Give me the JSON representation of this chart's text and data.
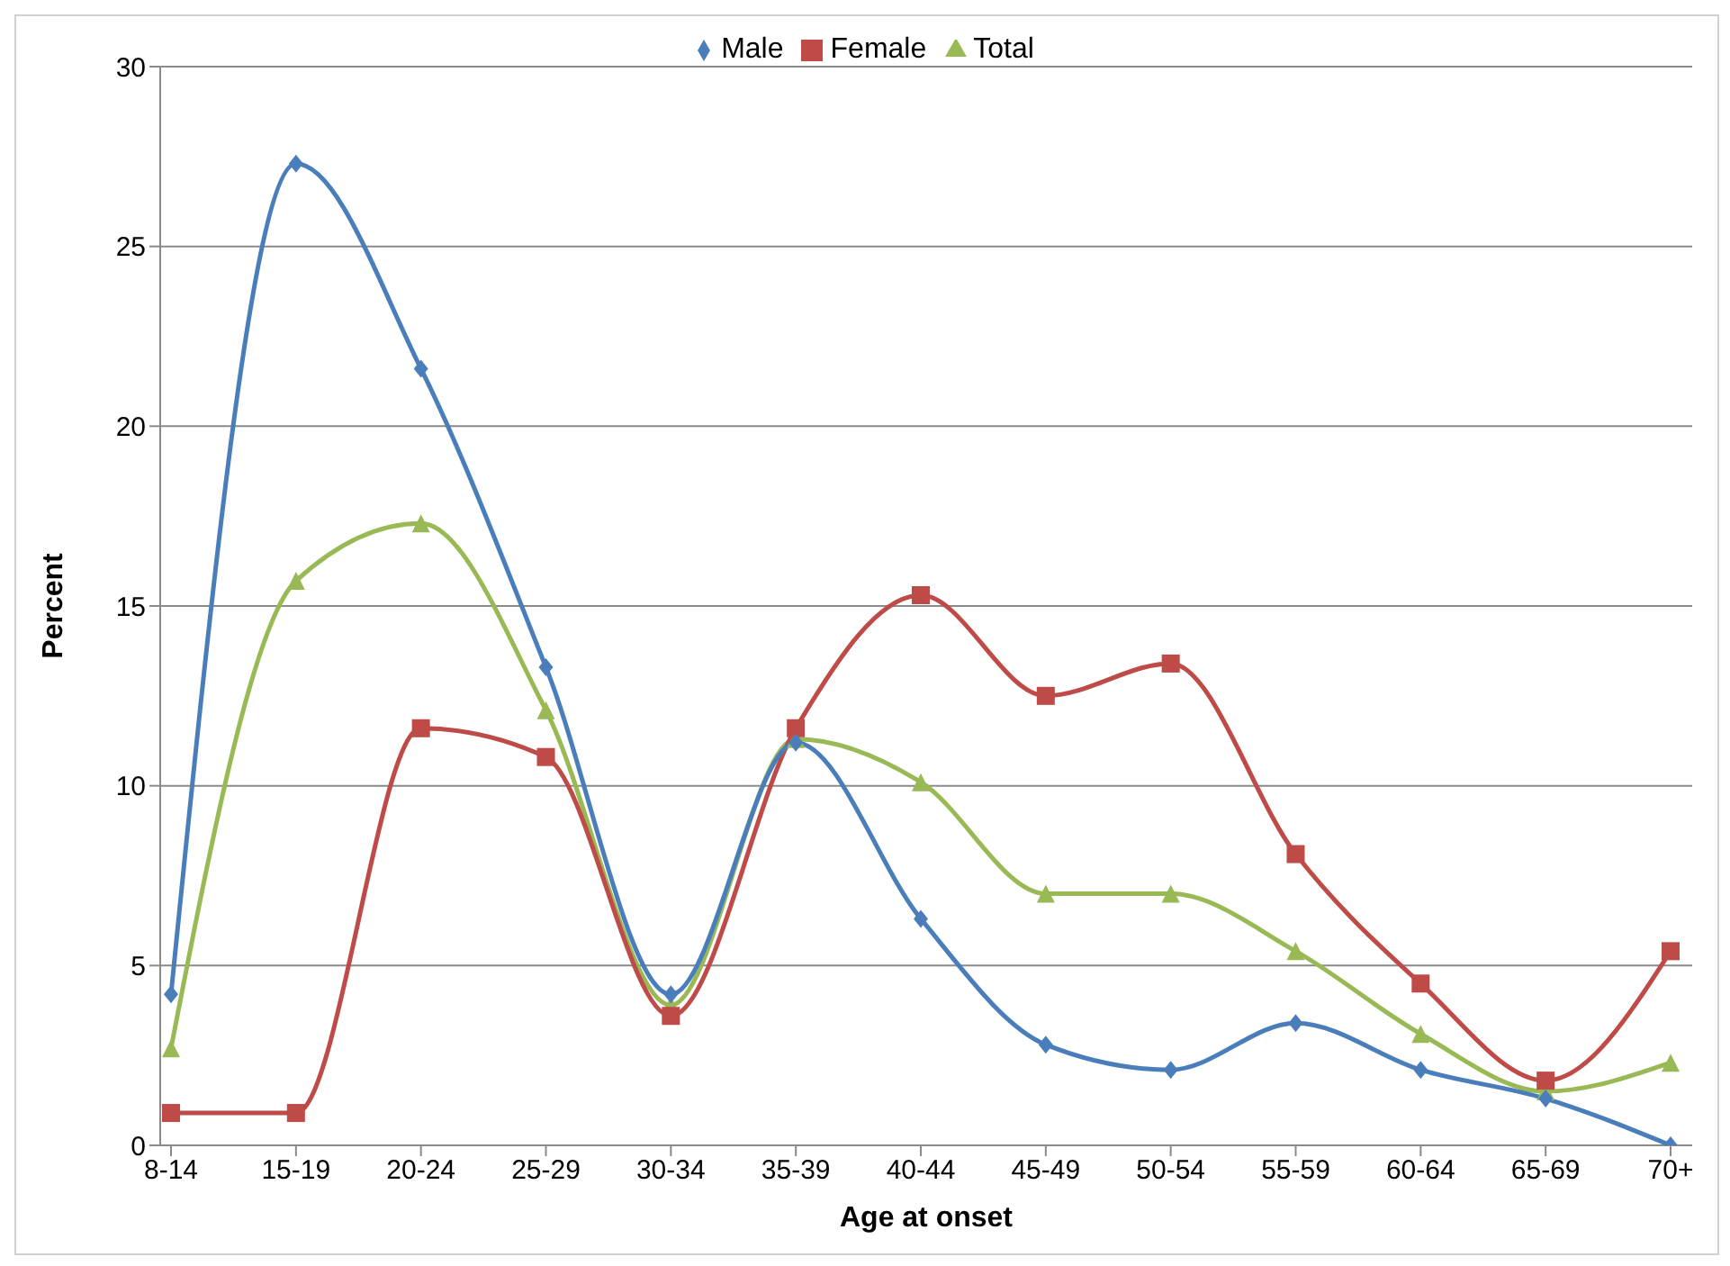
{
  "chart_data": {
    "type": "line",
    "xlabel": "Age at onset",
    "ylabel": "Percent",
    "categories": [
      "8-14",
      "15-19",
      "20-24",
      "25-29",
      "30-34",
      "35-39",
      "40-44",
      "45-49",
      "50-54",
      "55-59",
      "60-64",
      "65-69",
      "70+"
    ],
    "series": [
      {
        "name": "Male",
        "color": "#4a7ebb",
        "marker": "diamond",
        "values": [
          4.2,
          27.3,
          21.6,
          13.3,
          4.2,
          11.2,
          6.3,
          2.8,
          2.1,
          3.4,
          2.1,
          1.3,
          0
        ]
      },
      {
        "name": "Female",
        "color": "#be4b48",
        "marker": "square",
        "values": [
          0.9,
          0.9,
          11.6,
          10.8,
          3.6,
          11.6,
          15.3,
          12.5,
          13.4,
          8.1,
          4.5,
          1.8,
          5.4
        ]
      },
      {
        "name": "Total",
        "color": "#98b954",
        "marker": "triangle",
        "values": [
          2.7,
          15.7,
          17.3,
          12.1,
          3.9,
          11.3,
          10.1,
          7.0,
          7.0,
          5.4,
          3.1,
          1.5,
          2.3
        ]
      }
    ],
    "ylim": [
      0,
      30
    ],
    "yticks": [
      0,
      5,
      10,
      15,
      20,
      25,
      30
    ],
    "grid": "y",
    "legend": "top",
    "line_style": "solid"
  }
}
